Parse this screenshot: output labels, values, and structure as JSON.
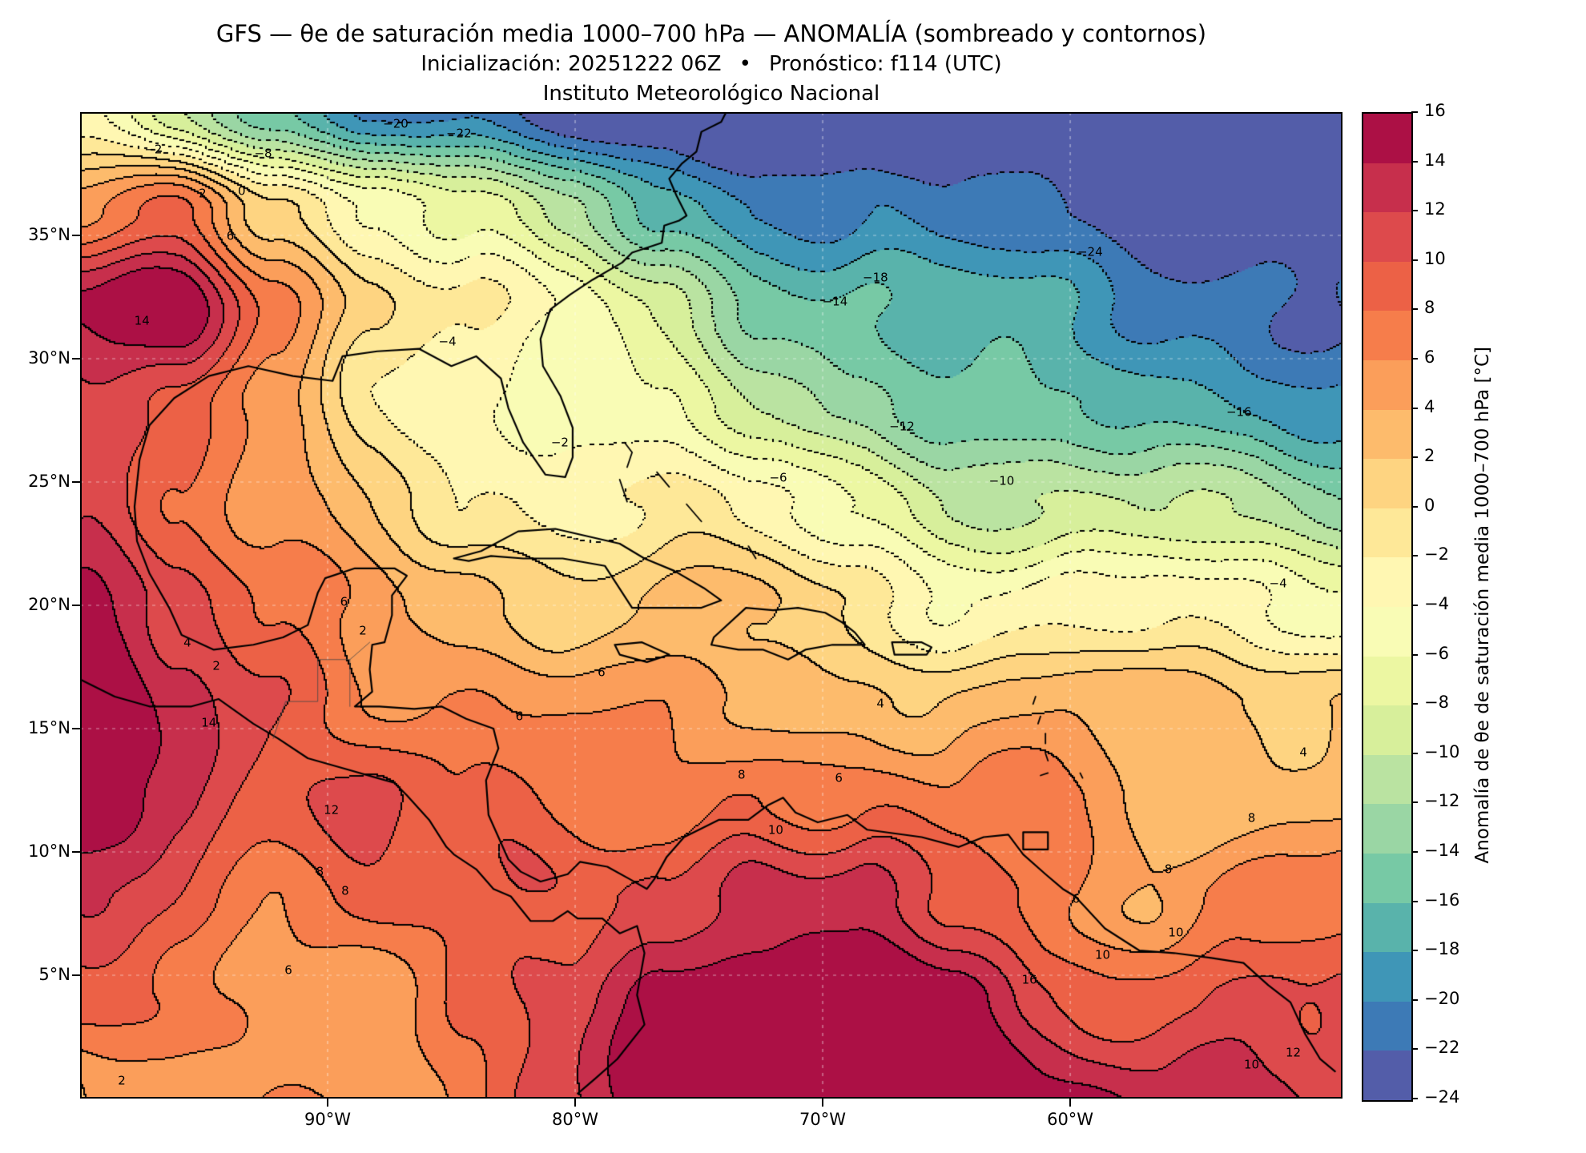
{
  "title": {
    "line1": "GFS — θe de saturación media 1000–700 hPa — ANOMALÍA (sombreado y contornos)",
    "line2_left": "Inicialización: 20251222 06Z",
    "line2_bullet": "•",
    "line2_right": "Pronóstico: f114 (UTC)",
    "line3": "Instituto Meteorológico Nacional"
  },
  "axes": {
    "lat_ticks": [
      {
        "label": "35°N",
        "value": 35
      },
      {
        "label": "30°N",
        "value": 30
      },
      {
        "label": "25°N",
        "value": 25
      },
      {
        "label": "20°N",
        "value": 20
      },
      {
        "label": "15°N",
        "value": 15
      },
      {
        "label": "10°N",
        "value": 10
      },
      {
        "label": "5°N",
        "value": 5
      }
    ],
    "lon_ticks": [
      {
        "label": "90°W",
        "value": -90
      },
      {
        "label": "80°W",
        "value": -80
      },
      {
        "label": "70°W",
        "value": -70
      },
      {
        "label": "60°W",
        "value": -60
      }
    ],
    "gridline_lats": [
      5,
      10,
      15,
      20,
      25,
      30,
      35
    ],
    "gridline_lons": [
      -90,
      -80,
      -70,
      -60
    ]
  },
  "colorbar": {
    "label": "Anomalía de θe de saturación media 1000–700 hPa [°C]",
    "min": -24,
    "max": 16,
    "tick_values": [
      16,
      14,
      12,
      10,
      8,
      6,
      4,
      2,
      0,
      -2,
      -4,
      -6,
      -8,
      -10,
      -12,
      -14,
      -16,
      -18,
      -20,
      -22,
      -24
    ],
    "bin_colors": [
      "#535da9",
      "#3d7ab6",
      "#3f96b7",
      "#59b3ab",
      "#77c9a5",
      "#9ad6a4",
      "#bae3a1",
      "#d7ef9b",
      "#ecf7a2",
      "#f9fcb5",
      "#fff7b2",
      "#fee898",
      "#fed481",
      "#fdbb6c",
      "#fb9e5a",
      "#f67d4b",
      "#ec6146",
      "#dd4a4c",
      "#c72f4c",
      "#ac1045"
    ]
  },
  "chart_data": {
    "type": "filled_contour_map",
    "model": "GFS",
    "field": "Anomalía de θe de saturación media 1000–700 hPa",
    "units": "°C",
    "init": "20251222 06Z",
    "forecast": "f114 (UTC)",
    "domain": {
      "lon_min": -100,
      "lon_max": -49,
      "lat_min": 0,
      "lat_max": 40
    },
    "contour_interval": 2,
    "shade_min": -24,
    "shade_max": 16,
    "negative_contours": "dotted",
    "positive_contours": "solid",
    "grid_lats": [
      40,
      36,
      32,
      28,
      24,
      20,
      16,
      12,
      8,
      4,
      0
    ],
    "grid_lons": [
      -100,
      -96.1,
      -92.2,
      -88.2,
      -84.3,
      -80.4,
      -76.5,
      -72.5,
      -68.6,
      -64.7,
      -60.8,
      -56.8,
      -52.9,
      -49
    ],
    "anomaly_grid": [
      [
        -6,
        -10,
        -16,
        -20,
        -22,
        -24,
        -24,
        -25,
        -26,
        -26,
        -26,
        -26,
        -25,
        -24
      ],
      [
        4,
        8,
        2,
        -4,
        -8,
        -12,
        -16,
        -18,
        -20,
        -22,
        -23,
        -23,
        -23,
        -24
      ],
      [
        14,
        16,
        8,
        2,
        -2,
        -6,
        -10,
        -14,
        -16,
        -18,
        -19,
        -20,
        -20,
        -21
      ],
      [
        12,
        10,
        4,
        0,
        -3,
        -5,
        -8,
        -11,
        -13,
        -15,
        -16,
        -17,
        -17,
        -18
      ],
      [
        14,
        8,
        4,
        2,
        0,
        -1,
        -2,
        -4,
        -6,
        -8,
        -9,
        -10,
        -11,
        -12
      ],
      [
        16,
        10,
        6,
        4,
        4,
        2,
        2,
        2,
        0,
        -2,
        -3,
        -4,
        -5,
        -5
      ],
      [
        16,
        12,
        8,
        6,
        6,
        6,
        5,
        4,
        4,
        3,
        2,
        2,
        2,
        2
      ],
      [
        14,
        12,
        10,
        12,
        8,
        6,
        6,
        10,
        8,
        6,
        5,
        4,
        4,
        4
      ],
      [
        12,
        10,
        8,
        10,
        8,
        8,
        10,
        14,
        12,
        8,
        6,
        6,
        8,
        8
      ],
      [
        8,
        8,
        6,
        6,
        8,
        10,
        14,
        16,
        16,
        14,
        10,
        10,
        12,
        10
      ],
      [
        4,
        4,
        6,
        6,
        8,
        12,
        16,
        16,
        16,
        16,
        14,
        14,
        14,
        12
      ]
    ],
    "contour_labels": [
      {
        "v": -20,
        "x": 0.25,
        "y": 0.012
      },
      {
        "v": -22,
        "x": 0.3,
        "y": 0.022
      },
      {
        "v": -8,
        "x": 0.145,
        "y": 0.042
      },
      {
        "v": -2,
        "x": 0.058,
        "y": 0.038
      },
      {
        "v": 0,
        "x": 0.128,
        "y": 0.08
      },
      {
        "v": 2,
        "x": 0.097,
        "y": 0.083
      },
      {
        "v": -24,
        "x": 0.8,
        "y": 0.142
      },
      {
        "v": -18,
        "x": 0.63,
        "y": 0.168
      },
      {
        "v": -14,
        "x": 0.598,
        "y": 0.192
      },
      {
        "v": 6,
        "x": 0.119,
        "y": 0.126
      },
      {
        "v": 14,
        "x": 0.049,
        "y": 0.212
      },
      {
        "v": -4,
        "x": 0.291,
        "y": 0.233
      },
      {
        "v": -16,
        "x": 0.918,
        "y": 0.304
      },
      {
        "v": -12,
        "x": 0.651,
        "y": 0.319
      },
      {
        "v": -10,
        "x": 0.73,
        "y": 0.374
      },
      {
        "v": -6,
        "x": 0.553,
        "y": 0.371
      },
      {
        "v": -2,
        "x": 0.38,
        "y": 0.335
      },
      {
        "v": -4,
        "x": 0.949,
        "y": 0.478
      },
      {
        "v": 6,
        "x": 0.209,
        "y": 0.497
      },
      {
        "v": 2,
        "x": 0.224,
        "y": 0.526
      },
      {
        "v": 4,
        "x": 0.085,
        "y": 0.538
      },
      {
        "v": 2,
        "x": 0.108,
        "y": 0.562
      },
      {
        "v": 6,
        "x": 0.413,
        "y": 0.568
      },
      {
        "v": 14,
        "x": 0.102,
        "y": 0.619
      },
      {
        "v": 4,
        "x": 0.634,
        "y": 0.6
      },
      {
        "v": 6,
        "x": 0.348,
        "y": 0.613
      },
      {
        "v": 4,
        "x": 0.969,
        "y": 0.649
      },
      {
        "v": 8,
        "x": 0.524,
        "y": 0.672
      },
      {
        "v": 6,
        "x": 0.601,
        "y": 0.675
      },
      {
        "v": 12,
        "x": 0.199,
        "y": 0.708
      },
      {
        "v": 10,
        "x": 0.551,
        "y": 0.728
      },
      {
        "v": 8,
        "x": 0.928,
        "y": 0.716
      },
      {
        "v": 8,
        "x": 0.862,
        "y": 0.768
      },
      {
        "v": 8,
        "x": 0.19,
        "y": 0.77
      },
      {
        "v": 8,
        "x": 0.21,
        "y": 0.79
      },
      {
        "v": 6,
        "x": 0.789,
        "y": 0.798
      },
      {
        "v": 10,
        "x": 0.868,
        "y": 0.832
      },
      {
        "v": 16,
        "x": 0.752,
        "y": 0.88
      },
      {
        "v": 10,
        "x": 0.81,
        "y": 0.855
      },
      {
        "v": 6,
        "x": 0.165,
        "y": 0.87
      },
      {
        "v": 12,
        "x": 0.961,
        "y": 0.954
      },
      {
        "v": 10,
        "x": 0.928,
        "y": 0.966
      },
      {
        "v": 2,
        "x": 0.033,
        "y": 0.982
      }
    ]
  }
}
